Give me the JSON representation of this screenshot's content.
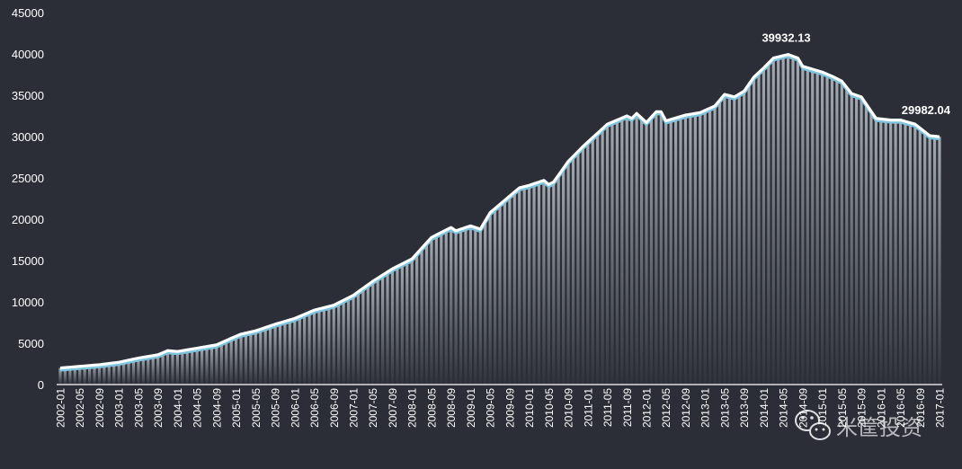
{
  "chart_data": {
    "type": "area",
    "title": "",
    "xlabel": "",
    "ylabel": "",
    "ylim": [
      0,
      45000
    ],
    "yticks": [
      0,
      5000,
      10000,
      15000,
      20000,
      25000,
      30000,
      35000,
      40000,
      45000
    ],
    "grid": false,
    "x_start": "2002-01",
    "x_tick_labels": [
      "2002-01",
      "2002-05",
      "2002-09",
      "2003-01",
      "2003-05",
      "2003-09",
      "2004-01",
      "2004-05",
      "2004-09",
      "2005-01",
      "2005-05",
      "2005-09",
      "2006-01",
      "2006-05",
      "2006-09",
      "2007-01",
      "2007-05",
      "2007-09",
      "2008-01",
      "2008-05",
      "2008-09",
      "2009-01",
      "2009-05",
      "2009-09",
      "2010-01",
      "2010-05",
      "2010-09",
      "2011-01",
      "2011-05",
      "2011-09",
      "2012-01",
      "2012-05",
      "2012-09",
      "2013-01",
      "2013-05",
      "2013-09",
      "2014-01",
      "2014-05",
      "2014-09",
      "2015-01",
      "2015-05",
      "2015-09",
      "2016-01",
      "2016-05",
      "2016-09",
      "2017-01"
    ],
    "anchors": [
      [
        "2002-01",
        2000
      ],
      [
        "2002-09",
        2400
      ],
      [
        "2003-01",
        2700
      ],
      [
        "2003-05",
        3200
      ],
      [
        "2003-09",
        3600
      ],
      [
        "2003-11",
        4100
      ],
      [
        "2004-01",
        4000
      ],
      [
        "2004-09",
        4800
      ],
      [
        "2004-12",
        5600
      ],
      [
        "2005-02",
        6100
      ],
      [
        "2005-05",
        6500
      ],
      [
        "2005-09",
        7300
      ],
      [
        "2006-01",
        8000
      ],
      [
        "2006-05",
        9000
      ],
      [
        "2006-09",
        9600
      ],
      [
        "2007-01",
        10800
      ],
      [
        "2007-05",
        12500
      ],
      [
        "2007-09",
        14000
      ],
      [
        "2008-01",
        15200
      ],
      [
        "2008-05",
        17800
      ],
      [
        "2008-09",
        19000
      ],
      [
        "2008-10",
        18600
      ],
      [
        "2009-01",
        19200
      ],
      [
        "2009-03",
        18800
      ],
      [
        "2009-05",
        20800
      ],
      [
        "2009-09",
        22800
      ],
      [
        "2009-11",
        23800
      ],
      [
        "2010-01",
        24100
      ],
      [
        "2010-04",
        24700
      ],
      [
        "2010-05",
        24200
      ],
      [
        "2010-06",
        24500
      ],
      [
        "2010-09",
        27000
      ],
      [
        "2010-12",
        28800
      ],
      [
        "2011-05",
        31500
      ],
      [
        "2011-09",
        32500
      ],
      [
        "2011-10",
        32200
      ],
      [
        "2011-11",
        32800
      ],
      [
        "2012-01",
        31700
      ],
      [
        "2012-03",
        33000
      ],
      [
        "2012-04",
        33000
      ],
      [
        "2012-05",
        31900
      ],
      [
        "2012-09",
        32600
      ],
      [
        "2012-12",
        32900
      ],
      [
        "2013-03",
        33700
      ],
      [
        "2013-05",
        35100
      ],
      [
        "2013-07",
        34800
      ],
      [
        "2013-09",
        35500
      ],
      [
        "2013-11",
        37200
      ],
      [
        "2014-01",
        38300
      ],
      [
        "2014-03",
        39500
      ],
      [
        "2014-06",
        39932.13
      ],
      [
        "2014-08",
        39500
      ],
      [
        "2014-09",
        38500
      ],
      [
        "2015-01",
        37800
      ],
      [
        "2015-03",
        37300
      ],
      [
        "2015-05",
        36700
      ],
      [
        "2015-07",
        35200
      ],
      [
        "2015-09",
        34800
      ],
      [
        "2015-12",
        32200
      ],
      [
        "2016-03",
        32000
      ],
      [
        "2016-05",
        32000
      ],
      [
        "2016-08",
        31500
      ],
      [
        "2016-11",
        30100
      ],
      [
        "2017-01",
        29982.04
      ]
    ],
    "annotations": [
      {
        "x": "2014-06",
        "y": 39932.13,
        "text": "39932.13"
      },
      {
        "x": "2017-01",
        "y": 29982.04,
        "text": "29982.04"
      }
    ],
    "line_color": "#ffffff",
    "fill_color": "#b9c0c8",
    "accent_color": "#7ec4de",
    "background": "#2b2e37"
  },
  "watermark": {
    "text": "米筐投资",
    "icon": "wechat-icon"
  }
}
